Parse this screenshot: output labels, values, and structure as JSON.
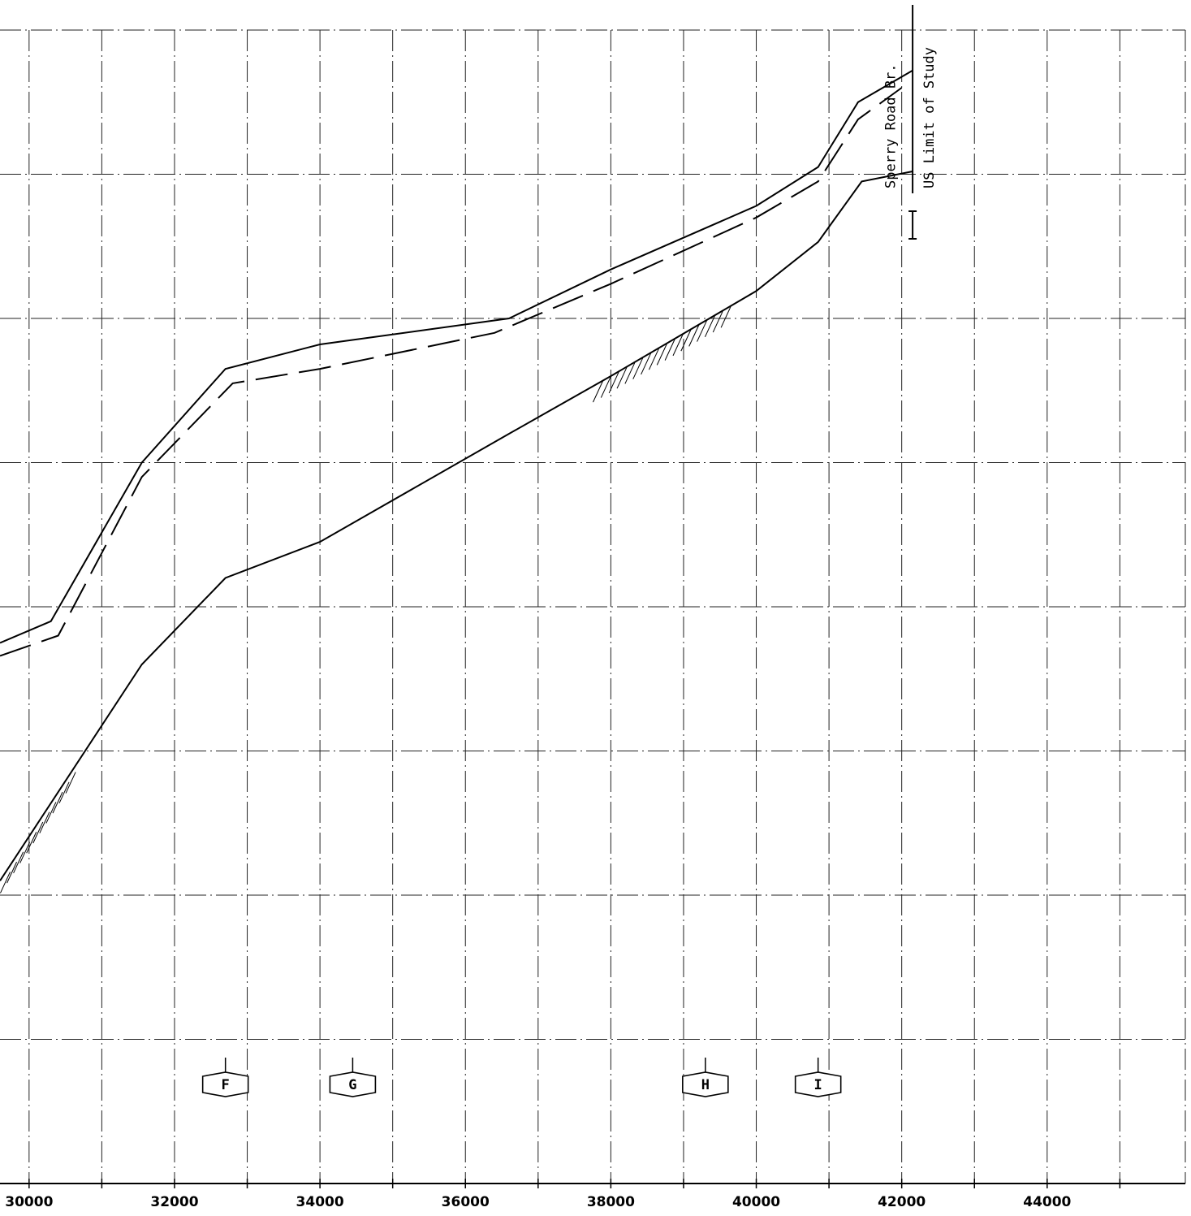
{
  "chart_data": {
    "type": "line",
    "title": "",
    "xlabel": "",
    "ylabel": "",
    "xlim": [
      29600,
      45900
    ],
    "ylim": [
      0,
      8
    ],
    "x_ticks": [
      "30000",
      "32000",
      "34000",
      "36000",
      "38000",
      "40000",
      "42000",
      "44000"
    ],
    "grid": true,
    "series": [
      {
        "style": "solid",
        "points": [
          [
            29600,
            3.75
          ],
          [
            30300,
            3.9
          ],
          [
            31550,
            5.0
          ],
          [
            32700,
            5.65
          ],
          [
            34000,
            5.82
          ],
          [
            36600,
            6.0
          ],
          [
            38000,
            6.34
          ],
          [
            40000,
            6.78
          ],
          [
            40850,
            7.05
          ],
          [
            41400,
            7.5
          ],
          [
            42150,
            7.72
          ]
        ]
      },
      {
        "style": "dashed",
        "points": [
          [
            29600,
            3.66
          ],
          [
            30400,
            3.8
          ],
          [
            31550,
            4.9
          ],
          [
            32800,
            5.55
          ],
          [
            34000,
            5.65
          ],
          [
            36400,
            5.9
          ],
          [
            38000,
            6.24
          ],
          [
            40000,
            6.7
          ],
          [
            40850,
            6.95
          ],
          [
            41400,
            7.38
          ],
          [
            42000,
            7.6
          ]
        ]
      },
      {
        "style": "solid",
        "points": [
          [
            29600,
            2.1
          ],
          [
            31550,
            3.6
          ],
          [
            32700,
            4.2
          ],
          [
            34000,
            4.45
          ],
          [
            36600,
            5.2
          ],
          [
            38000,
            5.6
          ],
          [
            40000,
            6.19
          ],
          [
            40850,
            6.53
          ],
          [
            41450,
            6.95
          ],
          [
            42150,
            7.02
          ]
        ]
      }
    ],
    "markers": [
      {
        "label": "F",
        "x": 32700
      },
      {
        "label": "G",
        "x": 34450
      },
      {
        "label": "H",
        "x": 39300
      },
      {
        "label": "I",
        "x": 40850
      }
    ],
    "annotations": [
      {
        "text": "Sperry Road Br.",
        "x": 42000
      },
      {
        "text": "US Limit of Study",
        "x": 42150
      }
    ]
  }
}
